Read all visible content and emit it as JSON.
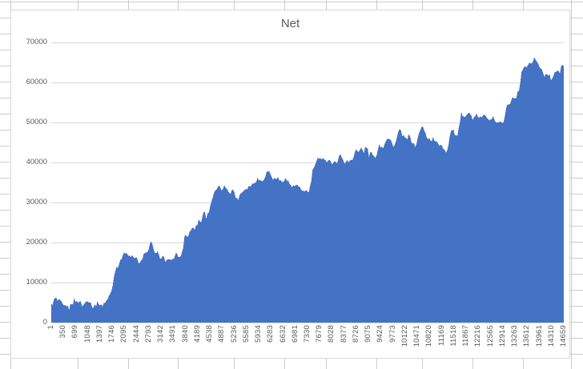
{
  "chart_data": {
    "type": "area",
    "title": "Net",
    "xlabel": "",
    "ylabel": "",
    "legend": "none",
    "grid": true,
    "ylim": [
      0,
      70000
    ],
    "y_ticks": [
      0,
      10000,
      20000,
      30000,
      40000,
      50000,
      60000,
      70000
    ],
    "x_category_range": [
      1,
      14659
    ],
    "x_tick_labels": [
      "1",
      "350",
      "699",
      "1048",
      "1397",
      "1746",
      "2095",
      "2444",
      "2793",
      "3142",
      "3491",
      "3840",
      "4189",
      "4538",
      "4887",
      "5236",
      "5585",
      "5934",
      "6283",
      "6632",
      "6981",
      "7330",
      "7679",
      "8028",
      "8377",
      "8726",
      "9075",
      "9424",
      "9773",
      "10122",
      "10471",
      "10820",
      "11169",
      "11518",
      "11867",
      "12216",
      "12565",
      "12914",
      "13263",
      "13612",
      "13961",
      "14310",
      "14659"
    ],
    "series": [
      {
        "name": "Net",
        "color": "#4472C4",
        "points": [
          [
            1,
            4400
          ],
          [
            47,
            5100
          ],
          [
            116,
            6100
          ],
          [
            207,
            5100
          ],
          [
            276,
            5400
          ],
          [
            345,
            3800
          ],
          [
            436,
            4400
          ],
          [
            505,
            3400
          ],
          [
            574,
            4800
          ],
          [
            665,
            5800
          ],
          [
            734,
            5100
          ],
          [
            803,
            5400
          ],
          [
            894,
            4100
          ],
          [
            963,
            4800
          ],
          [
            1032,
            5800
          ],
          [
            1123,
            5100
          ],
          [
            1192,
            3800
          ],
          [
            1261,
            4400
          ],
          [
            1352,
            5100
          ],
          [
            1421,
            4100
          ],
          [
            1490,
            4800
          ],
          [
            1581,
            5400
          ],
          [
            1650,
            6400
          ],
          [
            1719,
            7800
          ],
          [
            1765,
            10000
          ],
          [
            1833,
            13400
          ],
          [
            1925,
            14700
          ],
          [
            1993,
            15400
          ],
          [
            2062,
            17800
          ],
          [
            2154,
            17100
          ],
          [
            2223,
            16400
          ],
          [
            2291,
            16700
          ],
          [
            2383,
            15800
          ],
          [
            2452,
            16100
          ],
          [
            2520,
            14700
          ],
          [
            2612,
            15400
          ],
          [
            2681,
            18100
          ],
          [
            2750,
            17400
          ],
          [
            2841,
            20000
          ],
          [
            2910,
            19100
          ],
          [
            2978,
            16800
          ],
          [
            3070,
            17800
          ],
          [
            3139,
            15800
          ],
          [
            3208,
            16400
          ],
          [
            3299,
            15400
          ],
          [
            3368,
            16100
          ],
          [
            3437,
            15100
          ],
          [
            3528,
            16400
          ],
          [
            3597,
            17400
          ],
          [
            3666,
            16100
          ],
          [
            3757,
            17800
          ],
          [
            3826,
            22400
          ],
          [
            3895,
            21400
          ],
          [
            3986,
            22800
          ],
          [
            4055,
            24400
          ],
          [
            4124,
            23400
          ],
          [
            4215,
            25800
          ],
          [
            4284,
            24800
          ],
          [
            4353,
            28100
          ],
          [
            4444,
            26400
          ],
          [
            4513,
            28000
          ],
          [
            4582,
            30400
          ],
          [
            4674,
            32600
          ],
          [
            4742,
            33400
          ],
          [
            4811,
            34100
          ],
          [
            4903,
            33000
          ],
          [
            4971,
            34100
          ],
          [
            5040,
            33600
          ],
          [
            5132,
            32100
          ],
          [
            5200,
            33400
          ],
          [
            5315,
            30800
          ],
          [
            5429,
            32400
          ],
          [
            5544,
            33400
          ],
          [
            5658,
            34100
          ],
          [
            5773,
            34600
          ],
          [
            5887,
            36000
          ],
          [
            6002,
            35400
          ],
          [
            6116,
            36600
          ],
          [
            6185,
            37900
          ],
          [
            6277,
            37200
          ],
          [
            6345,
            35600
          ],
          [
            6460,
            36400
          ],
          [
            6574,
            35000
          ],
          [
            6689,
            36200
          ],
          [
            6803,
            34800
          ],
          [
            6918,
            33800
          ],
          [
            7032,
            34400
          ],
          [
            7147,
            32800
          ],
          [
            7261,
            33100
          ],
          [
            7376,
            32400
          ],
          [
            7490,
            38400
          ],
          [
            7605,
            40400
          ],
          [
            7719,
            41000
          ],
          [
            7788,
            41600
          ],
          [
            7834,
            40200
          ],
          [
            7948,
            40800
          ],
          [
            8063,
            39400
          ],
          [
            8177,
            40400
          ],
          [
            8246,
            42000
          ],
          [
            8338,
            41000
          ],
          [
            8406,
            39800
          ],
          [
            8521,
            40400
          ],
          [
            8635,
            41000
          ],
          [
            8704,
            43400
          ],
          [
            8796,
            42400
          ],
          [
            8864,
            43700
          ],
          [
            8933,
            42600
          ],
          [
            9025,
            44100
          ],
          [
            9093,
            41800
          ],
          [
            9162,
            42400
          ],
          [
            9254,
            41000
          ],
          [
            9322,
            42700
          ],
          [
            9391,
            44700
          ],
          [
            9483,
            43700
          ],
          [
            9551,
            45400
          ],
          [
            9620,
            46100
          ],
          [
            9712,
            45400
          ],
          [
            9780,
            44100
          ],
          [
            9849,
            44700
          ],
          [
            9941,
            48100
          ],
          [
            10009,
            47400
          ],
          [
            10078,
            46400
          ],
          [
            10170,
            45700
          ],
          [
            10238,
            46800
          ],
          [
            10307,
            45700
          ],
          [
            10399,
            44100
          ],
          [
            10467,
            45100
          ],
          [
            10536,
            48100
          ],
          [
            10628,
            48800
          ],
          [
            10696,
            47400
          ],
          [
            10765,
            46400
          ],
          [
            10857,
            45400
          ],
          [
            10925,
            46100
          ],
          [
            10994,
            45100
          ],
          [
            11086,
            44400
          ],
          [
            11154,
            44700
          ],
          [
            11223,
            43600
          ],
          [
            11315,
            42400
          ],
          [
            11383,
            46000
          ],
          [
            11452,
            48400
          ],
          [
            11498,
            48000
          ],
          [
            11612,
            46000
          ],
          [
            11727,
            52000
          ],
          [
            11841,
            51800
          ],
          [
            11956,
            52400
          ],
          [
            12070,
            50800
          ],
          [
            12185,
            51800
          ],
          [
            12299,
            51000
          ],
          [
            12414,
            52000
          ],
          [
            12528,
            50800
          ],
          [
            12643,
            51400
          ],
          [
            12712,
            49800
          ],
          [
            12803,
            50400
          ],
          [
            12872,
            50400
          ],
          [
            12941,
            49400
          ],
          [
            12986,
            52800
          ],
          [
            13055,
            54600
          ],
          [
            13101,
            54400
          ],
          [
            13170,
            55200
          ],
          [
            13215,
            56400
          ],
          [
            13284,
            55600
          ],
          [
            13330,
            57000
          ],
          [
            13399,
            58000
          ],
          [
            13444,
            62000
          ],
          [
            13513,
            63800
          ],
          [
            13605,
            63400
          ],
          [
            13673,
            64400
          ],
          [
            13742,
            65000
          ],
          [
            13834,
            66400
          ],
          [
            13902,
            64800
          ],
          [
            13971,
            63800
          ],
          [
            14063,
            62800
          ],
          [
            14131,
            61800
          ],
          [
            14200,
            62400
          ],
          [
            14292,
            60800
          ],
          [
            14360,
            62000
          ],
          [
            14429,
            63000
          ],
          [
            14521,
            62400
          ],
          [
            14589,
            63800
          ],
          [
            14658,
            64000
          ]
        ]
      }
    ]
  },
  "colors": {
    "area": "#4472C4",
    "chart_gridline": "#D9D9D9",
    "axis_label": "#595959",
    "sheet_gridline": "#CCCCCC",
    "chart_border": "#D9D9D9",
    "background": "#FFFFFF"
  }
}
